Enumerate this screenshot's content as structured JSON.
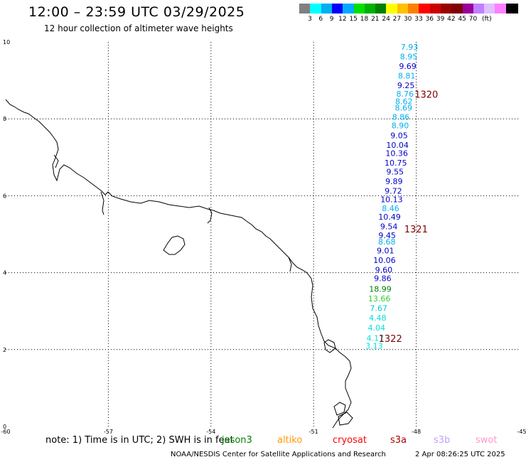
{
  "title": "12:00 – 23:59 UTC 03/29/2025",
  "subtitle": "12 hour collection of altimeter wave heights",
  "colorbar": {
    "colors": [
      "#808080",
      "#00ffff",
      "#00b0f0",
      "#0000ff",
      "#00aaff",
      "#00e000",
      "#00b000",
      "#008000",
      "#ffff00",
      "#ffc000",
      "#ff8000",
      "#ff0000",
      "#cc0000",
      "#990000",
      "#800000",
      "#990099",
      "#c080ff",
      "#e0c0ff",
      "#ff80ff",
      "#000000"
    ],
    "labels": [
      "3",
      "6",
      "9",
      "12",
      "15",
      "18",
      "21",
      "24",
      "27",
      "30",
      "33",
      "36",
      "39",
      "42",
      "45",
      "70"
    ],
    "unit": "(ft)"
  },
  "axes": {
    "x_ticks": [
      "-60",
      "-57",
      "-54",
      "-51",
      "-48",
      "-45"
    ],
    "y_ticks": [
      "10",
      "8",
      "6",
      "4",
      "2",
      "0"
    ]
  },
  "tracks": [
    {
      "label": "1320",
      "lat": 8.55,
      "lon": -48.05
    },
    {
      "label": "1321",
      "lat": 5.05,
      "lon": -48.35
    },
    {
      "label": "1322",
      "lat": 2.2,
      "lon": -49.1
    }
  ],
  "observations": [
    {
      "v": "7.93",
      "c": "#00b0f0",
      "lon": -48.2,
      "lat": 9.8
    },
    {
      "v": "8.95",
      "c": "#00b0f0",
      "lon": -48.22,
      "lat": 9.55
    },
    {
      "v": "9.69",
      "c": "#0000cc",
      "lon": -48.25,
      "lat": 9.3
    },
    {
      "v": "8.81",
      "c": "#00b0f0",
      "lon": -48.28,
      "lat": 9.05
    },
    {
      "v": "9.25",
      "c": "#0000cc",
      "lon": -48.3,
      "lat": 8.8
    },
    {
      "v": "8.76",
      "c": "#00b0f0",
      "lon": -48.33,
      "lat": 8.58
    },
    {
      "v": "8.62",
      "c": "#00b0f0",
      "lon": -48.36,
      "lat": 8.38
    },
    {
      "v": "8.69",
      "c": "#00b0f0",
      "lon": -48.37,
      "lat": 8.22
    },
    {
      "v": "8.86",
      "c": "#00b0f0",
      "lon": -48.45,
      "lat": 7.98
    },
    {
      "v": "8.90",
      "c": "#00b0f0",
      "lon": -48.47,
      "lat": 7.75
    },
    {
      "v": "9.05",
      "c": "#0000cc",
      "lon": -48.5,
      "lat": 7.5
    },
    {
      "v": "10.04",
      "c": "#0000cc",
      "lon": -48.55,
      "lat": 7.25
    },
    {
      "v": "10.36",
      "c": "#0000cc",
      "lon": -48.57,
      "lat": 7.03
    },
    {
      "v": "10.75",
      "c": "#0000cc",
      "lon": -48.6,
      "lat": 6.78
    },
    {
      "v": "9.55",
      "c": "#0000cc",
      "lon": -48.62,
      "lat": 6.55
    },
    {
      "v": "9.89",
      "c": "#0000cc",
      "lon": -48.65,
      "lat": 6.3
    },
    {
      "v": "9.72",
      "c": "#0000cc",
      "lon": -48.67,
      "lat": 6.05
    },
    {
      "v": "10.13",
      "c": "#0000cc",
      "lon": -48.72,
      "lat": 5.83
    },
    {
      "v": "8.46",
      "c": "#00b0f0",
      "lon": -48.75,
      "lat": 5.6
    },
    {
      "v": "10.49",
      "c": "#0000cc",
      "lon": -48.78,
      "lat": 5.38
    },
    {
      "v": "9.54",
      "c": "#0000cc",
      "lon": -48.8,
      "lat": 5.13
    },
    {
      "v": "9.45",
      "c": "#0000cc",
      "lon": -48.85,
      "lat": 4.9
    },
    {
      "v": "8.68",
      "c": "#00b0f0",
      "lon": -48.86,
      "lat": 4.73
    },
    {
      "v": "9.01",
      "c": "#0000cc",
      "lon": -48.9,
      "lat": 4.5
    },
    {
      "v": "10.06",
      "c": "#0000cc",
      "lon": -48.93,
      "lat": 4.25
    },
    {
      "v": "9.60",
      "c": "#0000cc",
      "lon": -48.95,
      "lat": 4.0
    },
    {
      "v": "9.86",
      "c": "#0000cc",
      "lon": -48.98,
      "lat": 3.78
    },
    {
      "v": "18.99",
      "c": "#008000",
      "lon": -49.05,
      "lat": 3.5
    },
    {
      "v": "13.66",
      "c": "#33cc33",
      "lon": -49.08,
      "lat": 3.25
    },
    {
      "v": "7.67",
      "c": "#00cccc",
      "lon": -49.1,
      "lat": 3.0
    },
    {
      "v": "4.48",
      "c": "#00e0e0",
      "lon": -49.13,
      "lat": 2.75
    },
    {
      "v": "4.04",
      "c": "#00e0e0",
      "lon": -49.16,
      "lat": 2.5
    },
    {
      "v": "4.17",
      "c": "#00e0e0",
      "lon": -49.2,
      "lat": 2.23
    },
    {
      "v": "3.13",
      "c": "#00e0e0",
      "lon": -49.23,
      "lat": 2.02
    }
  ],
  "note": "note:  1) Time is in UTC; 2) SWH is in feet",
  "satellites": [
    {
      "name": "jason3",
      "color": "#008000"
    },
    {
      "name": "altiko",
      "color": "#ff9900"
    },
    {
      "name": "cryosat",
      "color": "#ff0000"
    },
    {
      "name": "s3a",
      "color": "#aa0000"
    },
    {
      "name": "s3b",
      "color": "#c0a0ff"
    },
    {
      "name": "swot",
      "color": "#ff99cc"
    }
  ],
  "credit": "NOAA/NESDIS Center for Satellite Applications and Research",
  "stamp": "2 Apr 08:26:25 UTC 2025"
}
